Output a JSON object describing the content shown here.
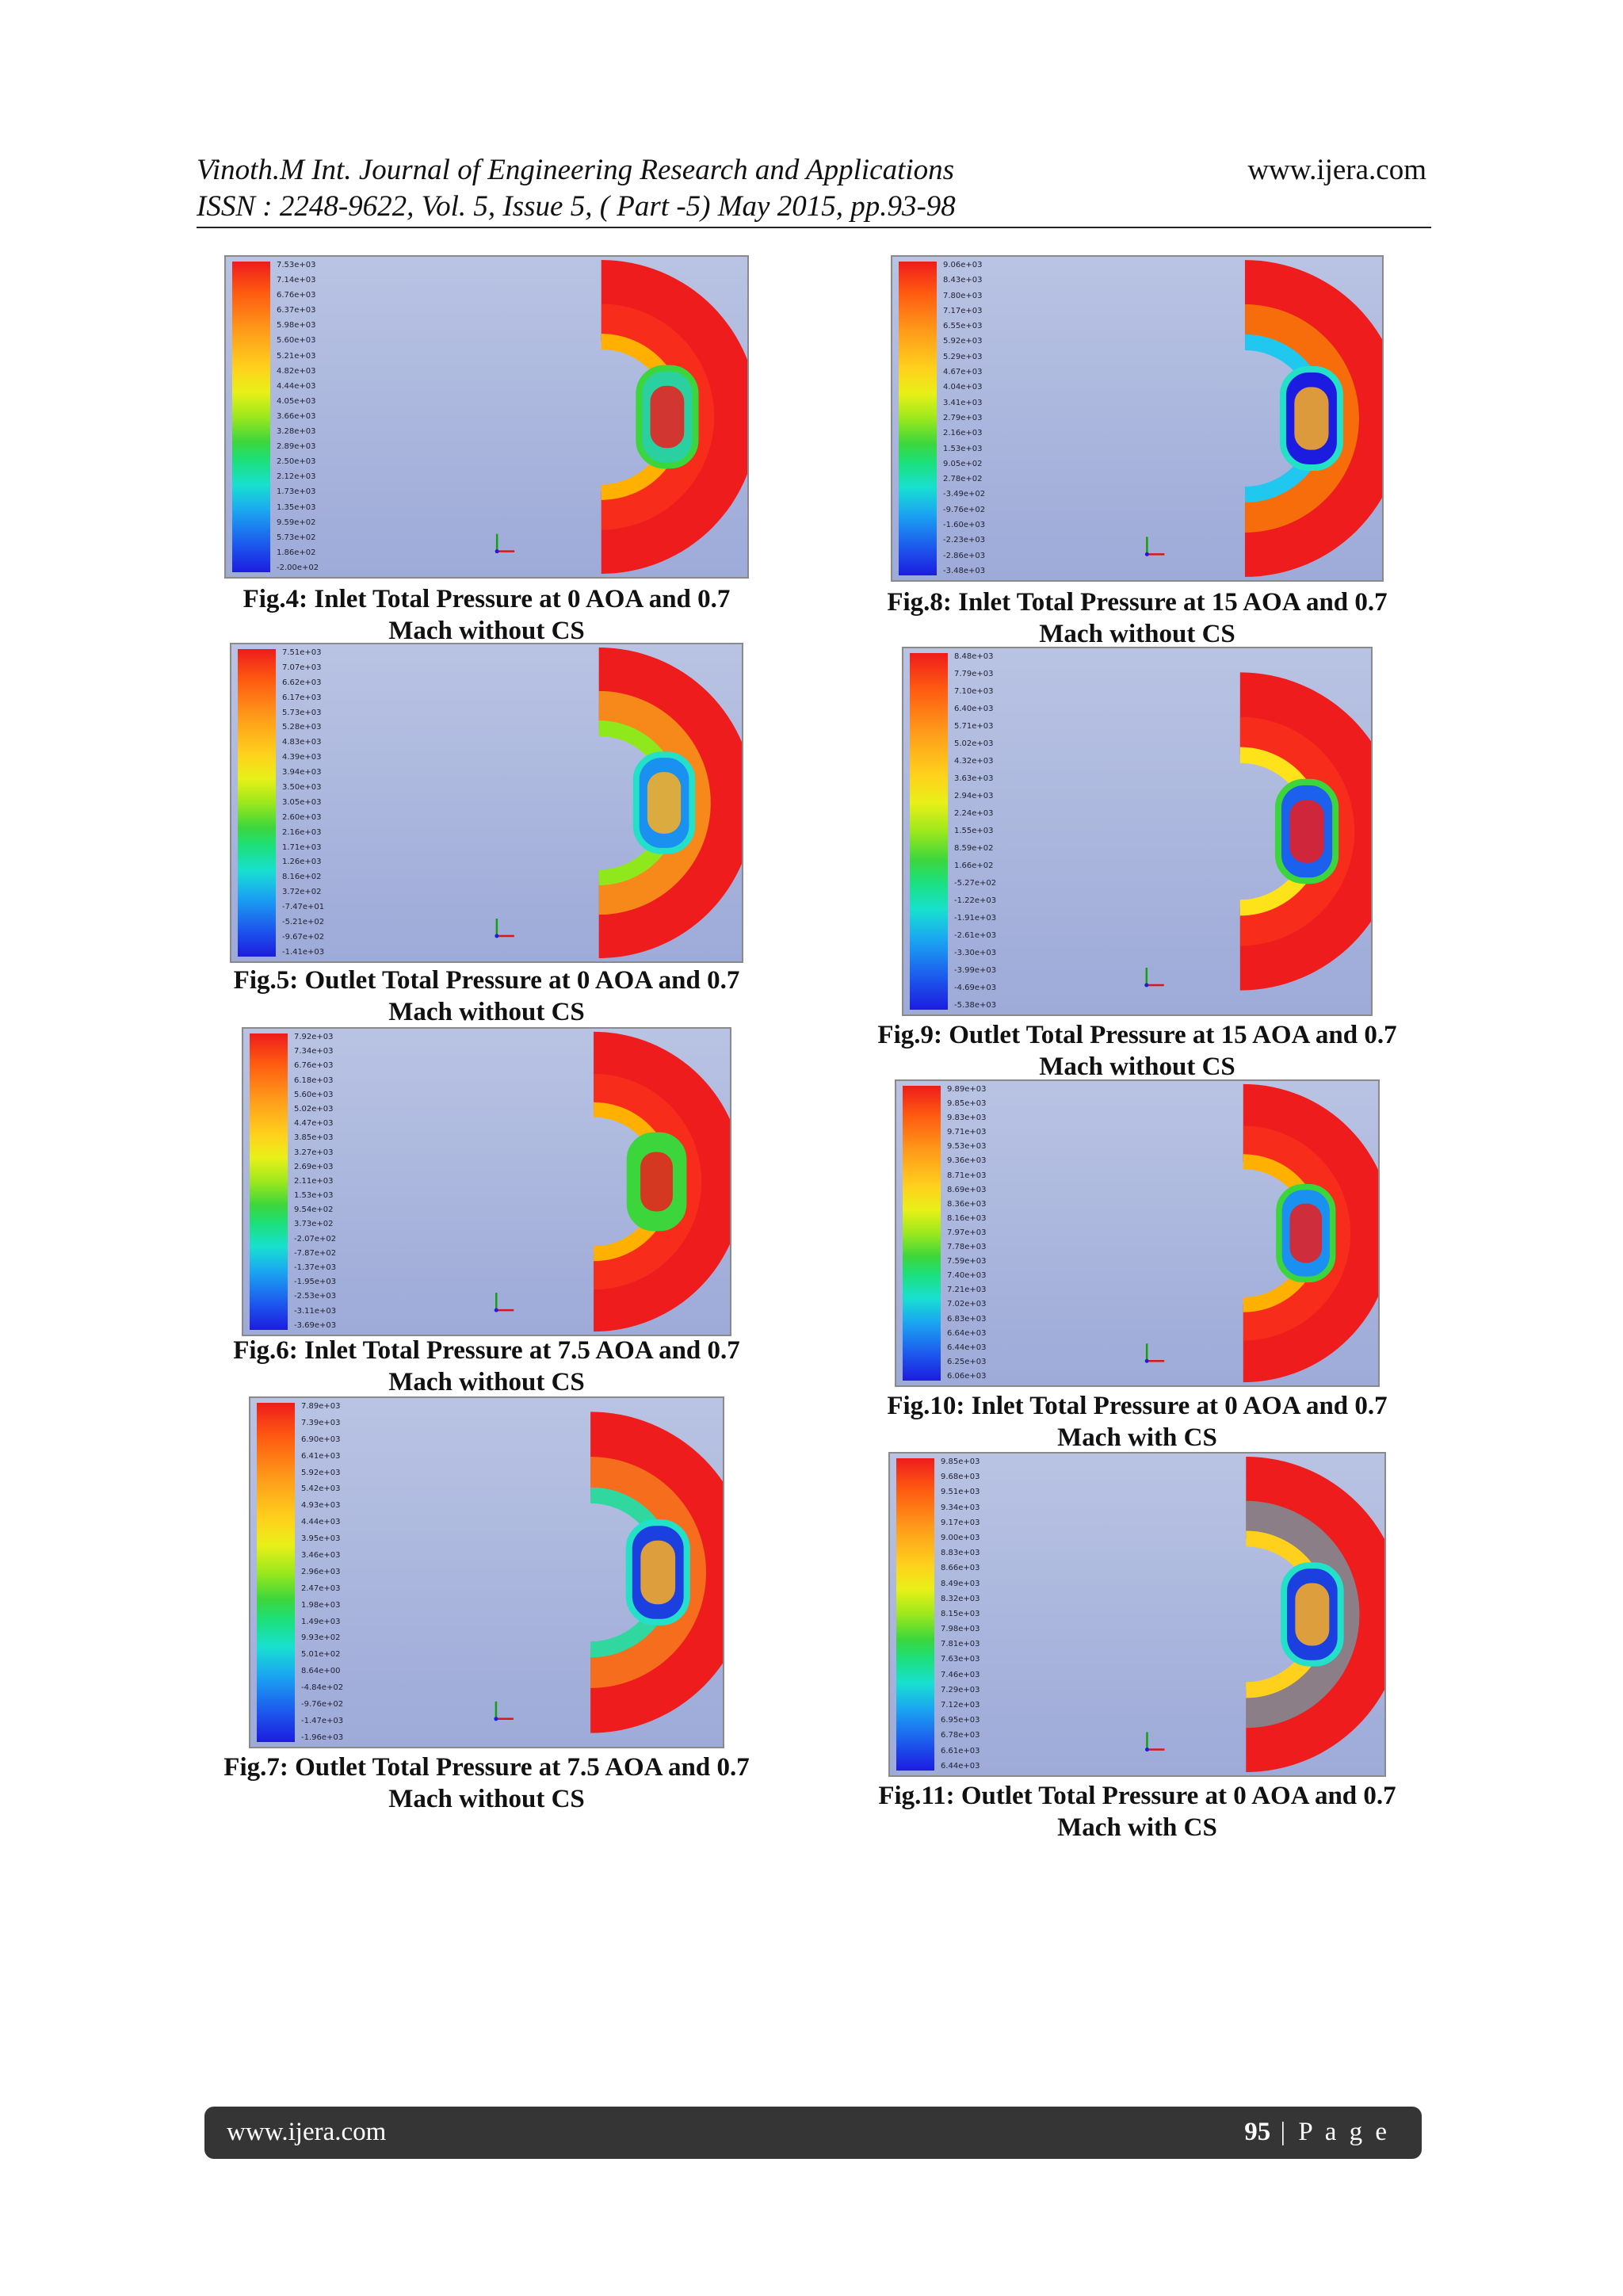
{
  "header": {
    "line1": "Vinoth.M Int. Journal of Engineering Research and Applications",
    "line2": "ISSN : 2248-9622, Vol. 5, Issue 5, ( Part -5) May 2015, pp.93-98",
    "url": "www.ijera.com"
  },
  "figures": [
    {
      "id": "fig4",
      "caption_line1": "Fig.4:  Inlet Total Pressure at 0 AOA and 0.7",
      "caption_line2": "Mach without CS",
      "legend": [
        "7.53e+03",
        "7.14e+03",
        "6.76e+03",
        "6.37e+03",
        "5.98e+03",
        "5.60e+03",
        "5.21e+03",
        "4.82e+03",
        "4.44e+03",
        "4.05e+03",
        "3.66e+03",
        "3.28e+03",
        "2.89e+03",
        "2.50e+03",
        "2.12e+03",
        "1.73e+03",
        "1.35e+03",
        "9.59e+02",
        "5.73e+02",
        "1.86e+02",
        "-2.00e+02"
      ]
    },
    {
      "id": "fig5",
      "caption_line1": "Fig.5:  Outlet Total Pressure at 0 AOA and 0.7",
      "caption_line2": "Mach without CS",
      "legend": [
        "7.51e+03",
        "7.07e+03",
        "6.62e+03",
        "6.17e+03",
        "5.73e+03",
        "5.28e+03",
        "4.83e+03",
        "4.39e+03",
        "3.94e+03",
        "3.50e+03",
        "3.05e+03",
        "2.60e+03",
        "2.16e+03",
        "1.71e+03",
        "1.26e+03",
        "8.16e+02",
        "3.72e+02",
        "-7.47e+01",
        "-5.21e+02",
        "-9.67e+02",
        "-1.41e+03"
      ]
    },
    {
      "id": "fig6",
      "caption_line1": "Fig.6: Inlet Total Pressure at 7.5 AOA and 0.7",
      "caption_line2": "Mach without CS",
      "legend": [
        "7.92e+03",
        "7.34e+03",
        "6.76e+03",
        "6.18e+03",
        "5.60e+03",
        "5.02e+03",
        "4.47e+03",
        "3.85e+03",
        "3.27e+03",
        "2.69e+03",
        "2.11e+03",
        "1.53e+03",
        "9.54e+02",
        "3.73e+02",
        "-2.07e+02",
        "-7.87e+02",
        "-1.37e+03",
        "-1.95e+03",
        "-2.53e+03",
        "-3.11e+03",
        "-3.69e+03"
      ]
    },
    {
      "id": "fig7",
      "caption_line1": "Fig.7: Outlet Total Pressure at 7.5 AOA and 0.7",
      "caption_line2": "Mach without CS",
      "legend": [
        "7.89e+03",
        "7.39e+03",
        "6.90e+03",
        "6.41e+03",
        "5.92e+03",
        "5.42e+03",
        "4.93e+03",
        "4.44e+03",
        "3.95e+03",
        "3.46e+03",
        "2.96e+03",
        "2.47e+03",
        "1.98e+03",
        "1.49e+03",
        "9.93e+02",
        "5.01e+02",
        "8.64e+00",
        "-4.84e+02",
        "-9.76e+02",
        "-1.47e+03",
        "-1.96e+03"
      ]
    },
    {
      "id": "fig8",
      "caption_line1": "Fig.8: Inlet Total Pressure at 15 AOA and 0.7",
      "caption_line2": "Mach without CS",
      "legend": [
        "9.06e+03",
        "8.43e+03",
        "7.80e+03",
        "7.17e+03",
        "6.55e+03",
        "5.92e+03",
        "5.29e+03",
        "4.67e+03",
        "4.04e+03",
        "3.41e+03",
        "2.79e+03",
        "2.16e+03",
        "1.53e+03",
        "9.05e+02",
        "2.78e+02",
        "-3.49e+02",
        "-9.76e+02",
        "-1.60e+03",
        "-2.23e+03",
        "-2.86e+03",
        "-3.48e+03"
      ]
    },
    {
      "id": "fig9",
      "caption_line1": "Fig.9: Outlet Total Pressure at 15 AOA and 0.7",
      "caption_line2": "Mach without CS",
      "legend": [
        "8.48e+03",
        "7.79e+03",
        "7.10e+03",
        "6.40e+03",
        "5.71e+03",
        "5.02e+03",
        "4.32e+03",
        "3.63e+03",
        "2.94e+03",
        "2.24e+03",
        "1.55e+03",
        "8.59e+02",
        "1.66e+02",
        "-5.27e+02",
        "-1.22e+03",
        "-1.91e+03",
        "-2.61e+03",
        "-3.30e+03",
        "-3.99e+03",
        "-4.69e+03",
        "-5.38e+03"
      ]
    },
    {
      "id": "fig10",
      "caption_line1": "Fig.10: Inlet Total Pressure at 0 AOA and 0.7",
      "caption_line2": "Mach with CS",
      "legend": [
        "9.89e+03",
        "9.85e+03",
        "9.83e+03",
        "9.71e+03",
        "9.53e+03",
        "9.36e+03",
        "8.71e+03",
        "8.69e+03",
        "8.36e+03",
        "8.16e+03",
        "7.97e+03",
        "7.78e+03",
        "7.59e+03",
        "7.40e+03",
        "7.21e+03",
        "7.02e+03",
        "6.83e+03",
        "6.64e+03",
        "6.44e+03",
        "6.25e+03",
        "6.06e+03"
      ]
    },
    {
      "id": "fig11",
      "caption_line1": "Fig.11: Outlet Total Pressure at 0 AOA and 0.7",
      "caption_line2": "Mach with CS",
      "legend": [
        "9.85e+03",
        "9.68e+03",
        "9.51e+03",
        "9.34e+03",
        "9.17e+03",
        "9.00e+03",
        "8.83e+03",
        "8.66e+03",
        "8.49e+03",
        "8.32e+03",
        "8.15e+03",
        "7.98e+03",
        "7.81e+03",
        "7.63e+03",
        "7.46e+03",
        "7.29e+03",
        "7.12e+03",
        "6.95e+03",
        "6.78e+03",
        "6.61e+03",
        "6.44e+03"
      ]
    }
  ],
  "footer": {
    "url": "www.ijera.com",
    "page_number": "95",
    "page_label": " | P a g e"
  }
}
